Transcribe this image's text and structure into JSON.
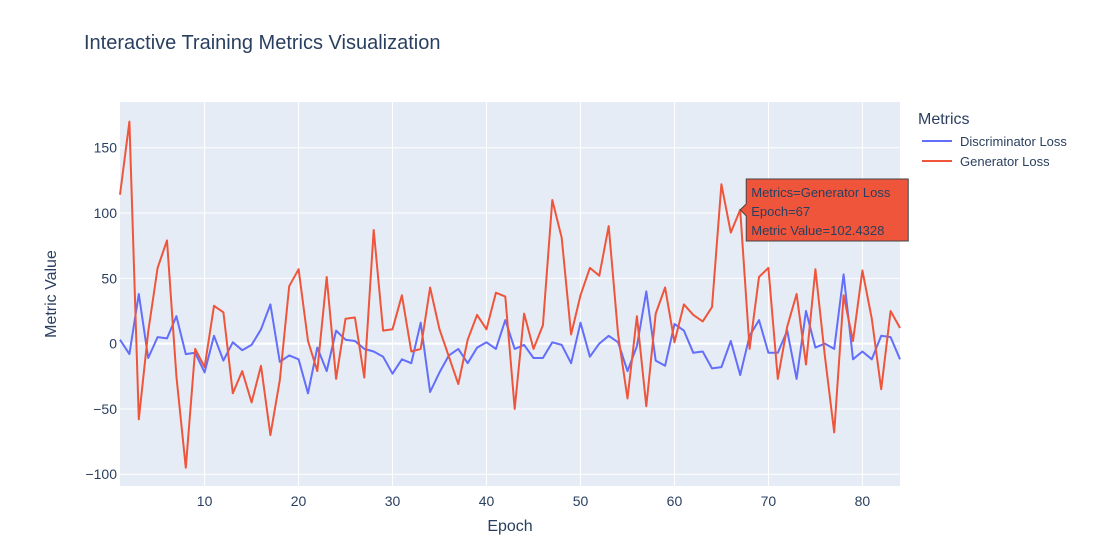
{
  "chart_data": {
    "type": "line",
    "title": "Interactive Training Metrics Visualization",
    "xlabel": "Epoch",
    "ylabel": "Metric Value",
    "xlim": [
      1,
      84
    ],
    "ylim": [
      -109,
      185
    ],
    "xticks": [
      10,
      20,
      30,
      40,
      50,
      60,
      70,
      80
    ],
    "yticks": [
      -100,
      -50,
      0,
      50,
      100,
      150
    ],
    "grid": true,
    "legend": {
      "title": "Metrics",
      "placement": "right"
    },
    "x": [
      1,
      2,
      3,
      4,
      5,
      6,
      7,
      8,
      9,
      10,
      11,
      12,
      13,
      14,
      15,
      16,
      17,
      18,
      19,
      20,
      21,
      22,
      23,
      24,
      25,
      26,
      27,
      28,
      29,
      30,
      31,
      32,
      33,
      34,
      35,
      36,
      37,
      38,
      39,
      40,
      41,
      42,
      43,
      44,
      45,
      46,
      47,
      48,
      49,
      50,
      51,
      52,
      53,
      54,
      55,
      56,
      57,
      58,
      59,
      60,
      61,
      62,
      63,
      64,
      65,
      66,
      67,
      68,
      69,
      70,
      71,
      72,
      73,
      74,
      75,
      76,
      77,
      78,
      79,
      80,
      81,
      82,
      83,
      84
    ],
    "series": [
      {
        "name": "Discriminator Loss",
        "color": "#636efa",
        "values": [
          3,
          -8,
          38,
          -11,
          5,
          4,
          21,
          -8,
          -7,
          -22,
          6,
          -13,
          1,
          -5,
          -1,
          11,
          30,
          -14,
          -9,
          -12,
          -38,
          -3,
          -21,
          10,
          3,
          2,
          -4,
          -6,
          -10,
          -23,
          -12,
          -15,
          16,
          -37,
          -22,
          -9,
          -4,
          -15,
          -3,
          1,
          -4,
          18,
          -4,
          -1,
          -11,
          -11,
          1,
          -1,
          -15,
          16,
          -10,
          0,
          6,
          1,
          -21,
          -2,
          40,
          -13,
          -17,
          15,
          10,
          -7,
          -6,
          -19,
          -18,
          2,
          -24,
          6,
          18,
          -7,
          -7,
          10,
          -27,
          25,
          -3,
          0,
          -4,
          53,
          -12,
          -6,
          -12,
          6,
          5,
          -12
        ]
      },
      {
        "name": "Generator Loss",
        "color": "#ef553b",
        "values": [
          114,
          170,
          -58,
          9,
          58,
          79,
          -25,
          -95,
          -4,
          -18,
          29,
          24,
          -38,
          -21,
          -45,
          -17,
          -70,
          -28,
          44,
          57,
          2,
          -21,
          51,
          -27,
          19,
          20,
          -26,
          87,
          10,
          11,
          37,
          -6,
          -4,
          43,
          11,
          -10,
          -31,
          3,
          22,
          11,
          39,
          36,
          -50,
          23,
          -4,
          14,
          110,
          81,
          7,
          37,
          58,
          52,
          90,
          7,
          -42,
          21,
          -48,
          23,
          43,
          1,
          30,
          22,
          17,
          28,
          122,
          85,
          102.4328,
          -4,
          51,
          58,
          -27,
          13,
          38,
          -16,
          57,
          -9,
          -68,
          37,
          2,
          56,
          19,
          -35,
          25,
          12
        ]
      }
    ],
    "tooltip": {
      "series_text": "Metrics=Generator Loss",
      "x_text": "Epoch=67",
      "y_text": "Metric Value=102.4328",
      "series_index": 1,
      "point_index": 66
    }
  }
}
